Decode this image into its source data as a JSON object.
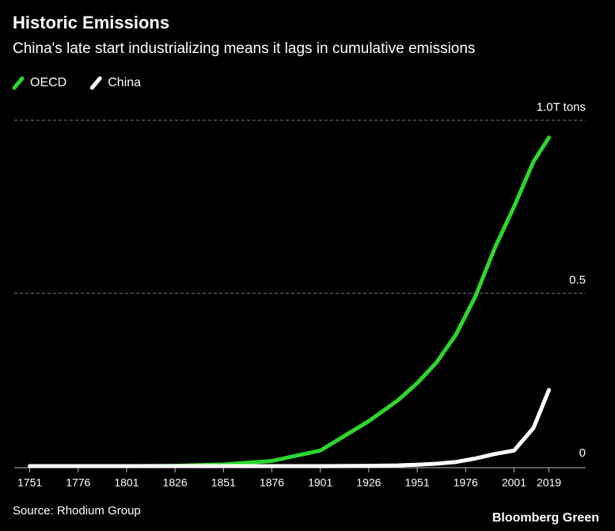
{
  "chart_data": {
    "type": "line",
    "title": "Historic Emissions",
    "subtitle": "China's late start industrializing means it lags in cumulative emissions",
    "x": [
      1751,
      1776,
      1801,
      1826,
      1851,
      1876,
      1901,
      1926,
      1941,
      1951,
      1961,
      1971,
      1981,
      1991,
      2001,
      2011,
      2019
    ],
    "series": [
      {
        "name": "OECD",
        "color": "#2ed52e",
        "values": [
          0,
          0,
          0,
          0.001,
          0.005,
          0.015,
          0.045,
          0.13,
          0.19,
          0.24,
          0.3,
          0.38,
          0.49,
          0.63,
          0.75,
          0.88,
          0.95
        ]
      },
      {
        "name": "China",
        "color": "#ffffff",
        "values": [
          0,
          0,
          0,
          0,
          0,
          0,
          0,
          0.001,
          0.002,
          0.004,
          0.007,
          0.012,
          0.022,
          0.035,
          0.045,
          0.11,
          0.22
        ]
      }
    ],
    "xlim": [
      1743,
      2038
    ],
    "xticks": [
      1751,
      1776,
      1801,
      1826,
      1851,
      1876,
      1901,
      1926,
      1951,
      1976,
      2001,
      2019
    ],
    "ylim": [
      0,
      1
    ],
    "yticks": [
      0,
      0.5,
      {
        "value": 1,
        "label": "1.0T tons"
      }
    ],
    "grid": true,
    "legend": "top-left",
    "source": "Source: Rhodium Group",
    "credit": "Bloomberg Green"
  }
}
